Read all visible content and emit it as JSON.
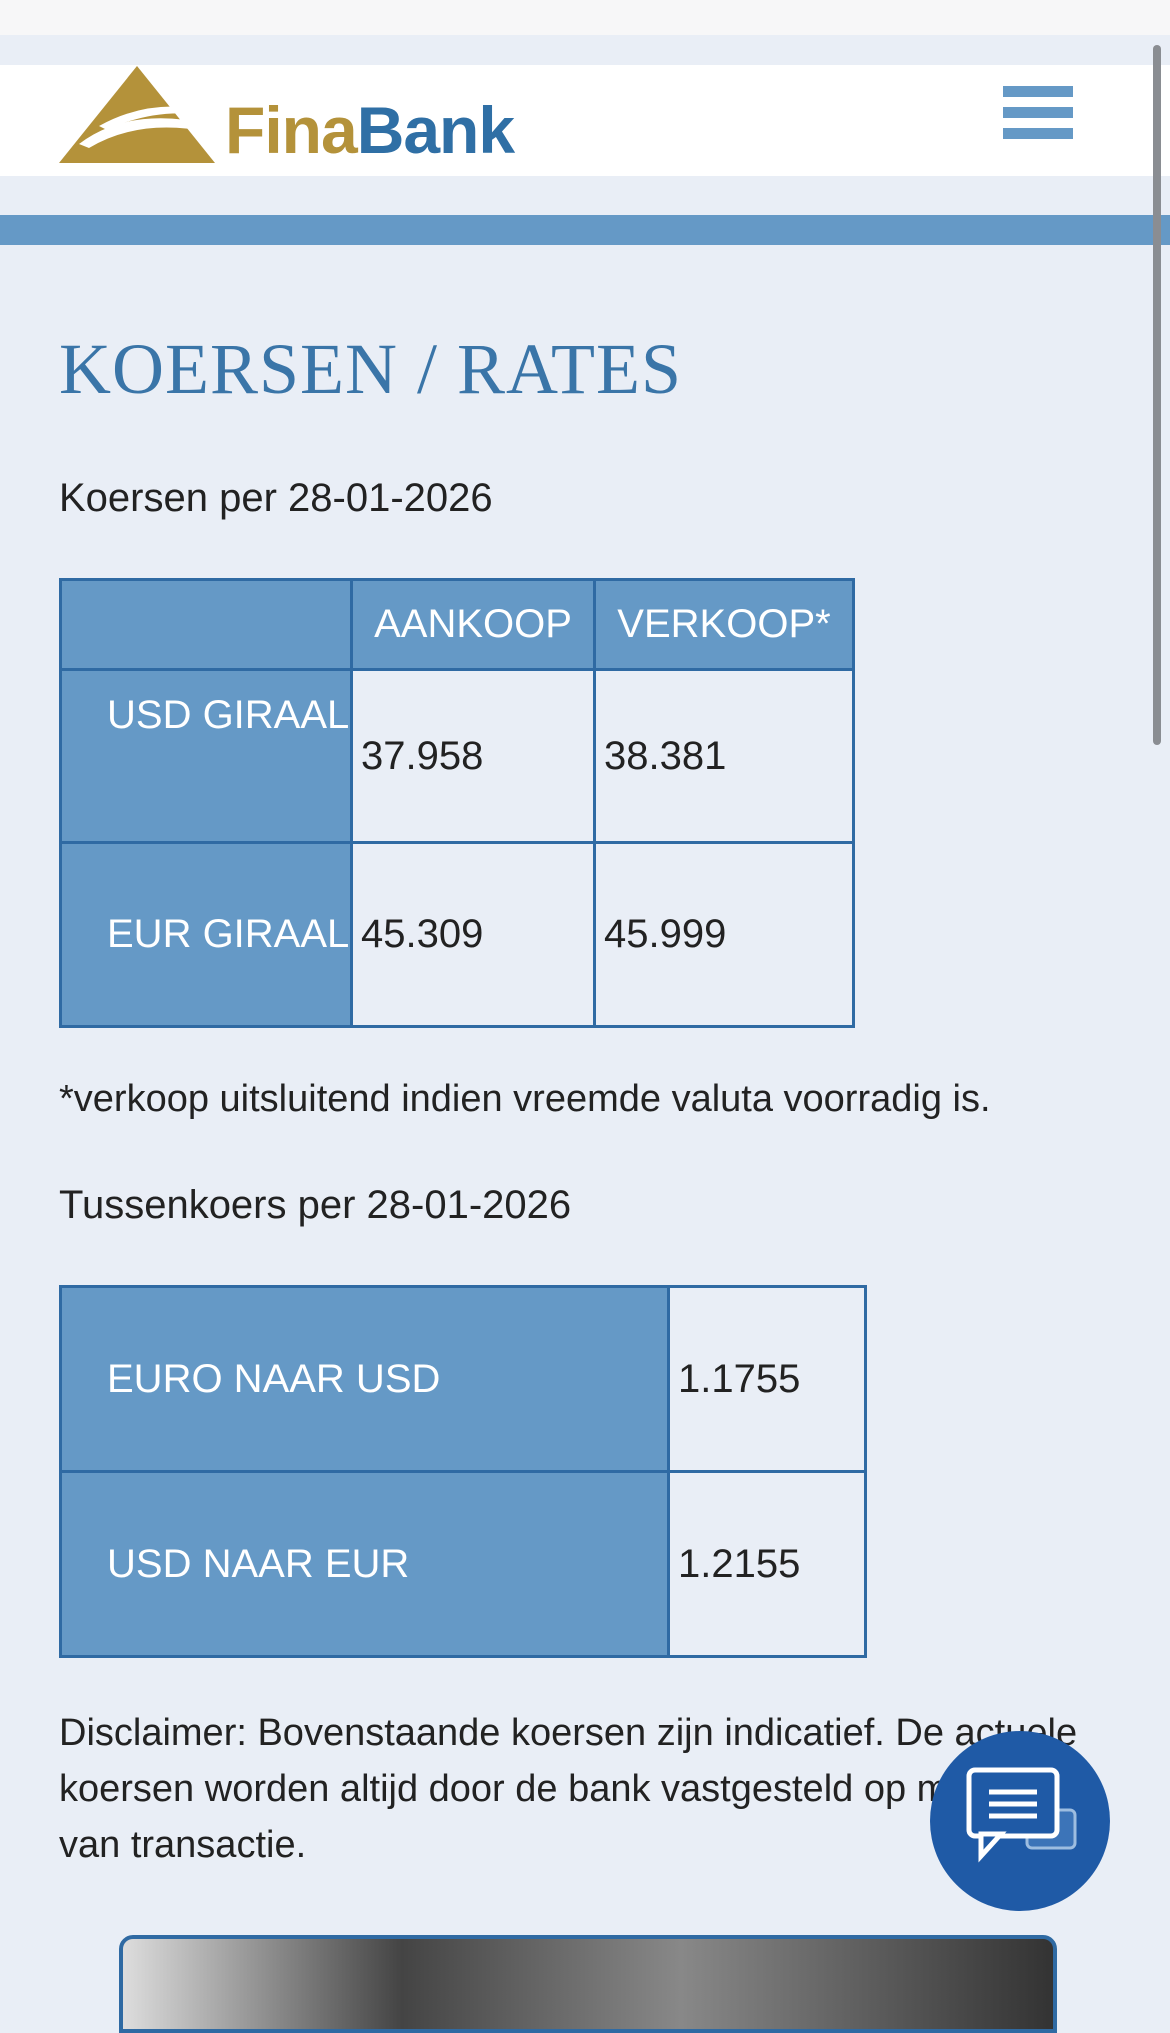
{
  "header": {
    "logo_part1": "Fina",
    "logo_part2": "Bank"
  },
  "title": "KOERSEN / RATES",
  "rates_heading": "Koersen per 28-01-2026",
  "rates_table": {
    "columns": [
      "AANKOOP",
      "VERKOOP*"
    ],
    "rows": [
      [
        "USD GIRAAL",
        "37.958",
        "38.381"
      ],
      [
        "EUR GIRAAL",
        "45.309",
        "45.999"
      ]
    ]
  },
  "footnote": "*verkoop uitsluitend indien vreemde valuta voorradig is.",
  "cross_heading": "Tussenkoers per 28-01-2026",
  "cross_table": {
    "rows": [
      [
        "EURO NAAR USD",
        "1.1755"
      ],
      [
        "USD NAAR EUR",
        "1.2155"
      ]
    ]
  },
  "disclaimer": "Disclaimer: Bovenstaande koersen zijn indicatief. De actuele koersen worden altijd door de bank vastgesteld op moment van transactie."
}
